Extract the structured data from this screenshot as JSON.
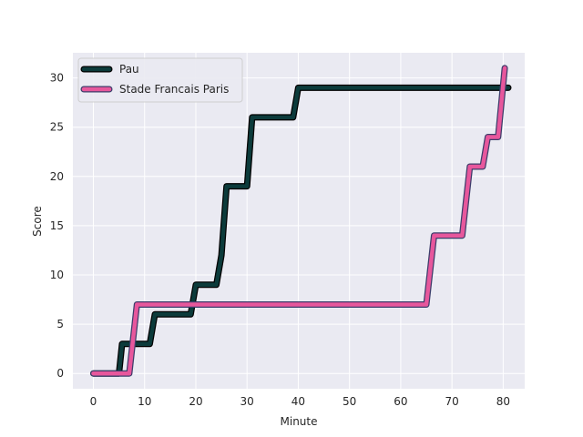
{
  "chart_data": {
    "type": "line",
    "xlabel": "Minute",
    "ylabel": "Score",
    "xlim": [
      -4,
      84.2
    ],
    "ylim": [
      -1.55,
      32.55
    ],
    "x_ticks": [
      0,
      10,
      20,
      30,
      40,
      50,
      60,
      70,
      80
    ],
    "y_ticks": [
      0,
      5,
      10,
      15,
      20,
      25,
      30
    ],
    "grid": true,
    "legend_position": "top-left",
    "background": "#eaeaf2",
    "series": [
      {
        "name": "Pau",
        "color": "#0c3b3b",
        "outline": "#000000",
        "points": [
          [
            0,
            0
          ],
          [
            5,
            0
          ],
          [
            5.6,
            3
          ],
          [
            11,
            3
          ],
          [
            12,
            6
          ],
          [
            19,
            6
          ],
          [
            20,
            9
          ],
          [
            24,
            9
          ],
          [
            25,
            12
          ],
          [
            26,
            19
          ],
          [
            30,
            19
          ],
          [
            31,
            26
          ],
          [
            39,
            26
          ],
          [
            40,
            29
          ],
          [
            81,
            29
          ]
        ]
      },
      {
        "name": "Stade Francais Paris",
        "color": "#e7579c",
        "outline": "#3d3d6b",
        "points": [
          [
            0,
            0
          ],
          [
            7,
            0
          ],
          [
            8.5,
            7
          ],
          [
            65,
            7
          ],
          [
            66.5,
            14
          ],
          [
            72,
            14
          ],
          [
            73.5,
            21
          ],
          [
            76,
            21
          ],
          [
            77,
            24
          ],
          [
            79,
            24
          ],
          [
            80.3,
            31
          ]
        ]
      }
    ]
  }
}
